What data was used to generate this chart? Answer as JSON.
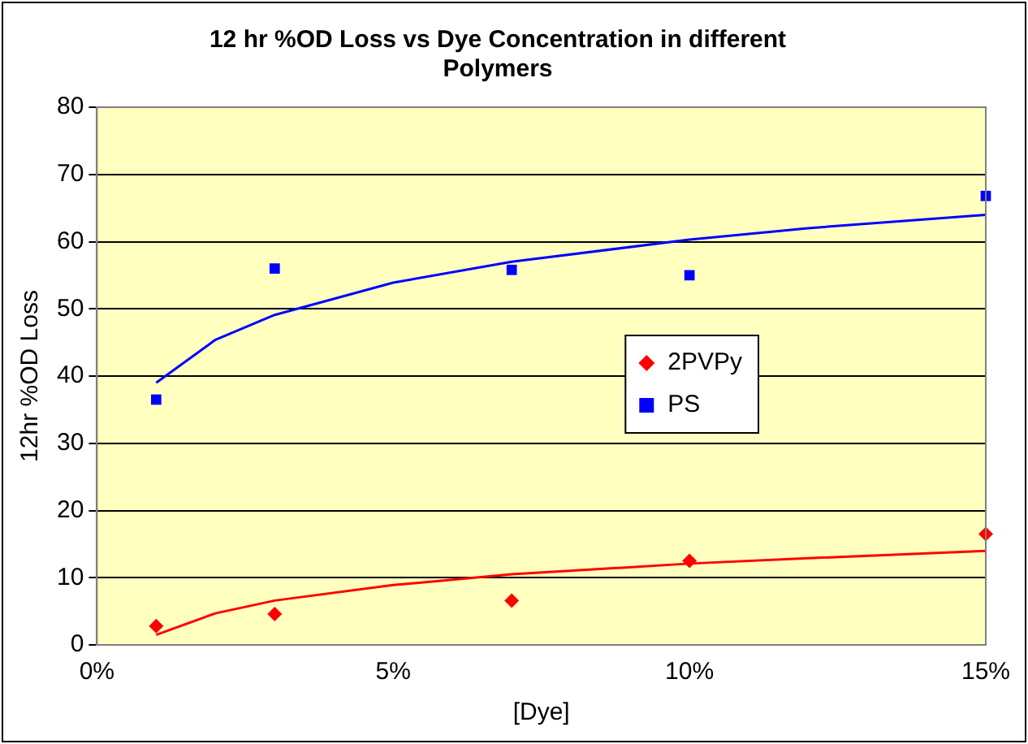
{
  "chart_data": {
    "type": "scatter",
    "title": "12 hr %OD Loss vs Dye Concentration in different Polymers",
    "xlabel": "[Dye]",
    "ylabel": "12hr %OD Loss",
    "xlim": [
      0,
      15
    ],
    "xticks": [
      {
        "value": 0,
        "label": "0%"
      },
      {
        "value": 5,
        "label": "5%"
      },
      {
        "value": 10,
        "label": "10%"
      },
      {
        "value": 15,
        "label": "15%"
      }
    ],
    "ylim": [
      0,
      80
    ],
    "yticks": [
      0,
      10,
      20,
      30,
      40,
      50,
      60,
      70,
      80
    ],
    "grid": "y",
    "legend": "right",
    "series": [
      {
        "name": "2PVPy",
        "type": "scatter",
        "marker": "diamond",
        "color": "#ff0000",
        "x": [
          1,
          3,
          7,
          10,
          15
        ],
        "values": [
          2.8,
          4.6,
          6.6,
          12.5,
          16.5
        ]
      },
      {
        "name": "PS",
        "type": "scatter",
        "marker": "square",
        "color": "#0000ff",
        "x": [
          1,
          3,
          7,
          10,
          15
        ],
        "values": [
          36.5,
          56,
          55.8,
          55,
          66.8
        ]
      },
      {
        "type": "line",
        "marker": "none",
        "color": "#ff0000",
        "x": [
          1,
          2,
          3,
          5,
          7,
          10,
          12,
          15
        ],
        "values": [
          1.5,
          4.7,
          6.6,
          8.9,
          10.5,
          12.1,
          12.9,
          14
        ]
      },
      {
        "type": "line",
        "marker": "none",
        "color": "#0000ff",
        "x": [
          1,
          2,
          3,
          5,
          7,
          10,
          12,
          15
        ],
        "values": [
          39,
          45.4,
          49.1,
          53.9,
          57,
          60.3,
          62,
          64
        ]
      }
    ]
  }
}
